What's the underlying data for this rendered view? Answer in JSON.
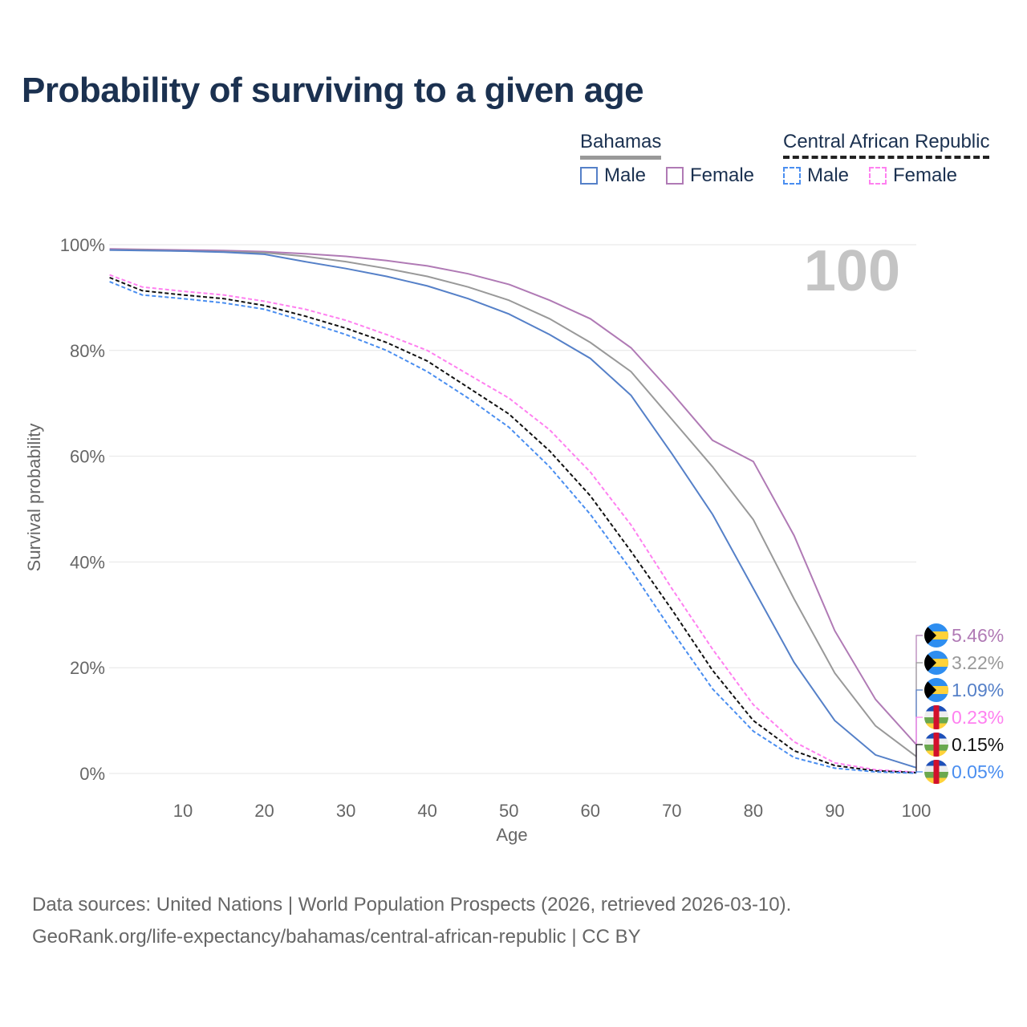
{
  "title": "Probability of surviving to a given age",
  "legend": {
    "groups": [
      {
        "name": "Bahamas",
        "male": "Male",
        "female": "Female"
      },
      {
        "name": "Central African Republic",
        "male": "Male",
        "female": "Female"
      }
    ]
  },
  "age_badge": "100",
  "source": {
    "line1": "Data sources: United Nations | World Population Prospects (2026, retrieved 2026-03-10).",
    "line2": "GeoRank.org/life-expectancy/bahamas/central-african-republic | CC BY"
  },
  "chart_data": {
    "type": "line",
    "xlabel": "Age",
    "ylabel": "Survival probability",
    "xlim": [
      1,
      100
    ],
    "ylim": [
      0,
      100
    ],
    "xticks": [
      10,
      20,
      30,
      40,
      50,
      60,
      70,
      80,
      90,
      100
    ],
    "yticks": [
      0,
      20,
      40,
      60,
      80,
      100
    ],
    "ytick_labels": [
      "0%",
      "20%",
      "40%",
      "60%",
      "80%",
      "100%"
    ],
    "x": [
      1,
      5,
      10,
      15,
      20,
      25,
      30,
      35,
      40,
      45,
      50,
      55,
      60,
      65,
      70,
      75,
      80,
      85,
      90,
      95,
      100
    ],
    "series": [
      {
        "name": "Bahamas Female",
        "color": "#b07ab5",
        "dash": false,
        "end_label": "5.46%",
        "flag": "bahamas",
        "values": [
          99.2,
          99.1,
          99,
          98.9,
          98.7,
          98.3,
          97.8,
          97,
          96,
          94.5,
          92.5,
          89.5,
          86,
          80.5,
          72,
          63,
          59,
          45,
          27,
          14,
          5.46
        ]
      },
      {
        "name": "Bahamas",
        "color": "#999999",
        "dash": false,
        "end_label": "3.22%",
        "flag": "bahamas",
        "values": [
          99,
          99,
          98.8,
          98.7,
          98.5,
          97.8,
          96.8,
          95.5,
          94,
          92,
          89.5,
          86,
          81.5,
          76,
          67,
          58,
          48,
          33,
          19,
          9,
          3.22
        ]
      },
      {
        "name": "Bahamas Male",
        "color": "#5580c8",
        "dash": false,
        "end_label": "1.09%",
        "flag": "bahamas",
        "values": [
          99,
          98.9,
          98.8,
          98.6,
          98.2,
          96.8,
          95.5,
          94,
          92.2,
          89.8,
          86.9,
          83,
          78.5,
          71.5,
          60.5,
          49,
          35,
          21,
          10,
          3.5,
          1.09
        ]
      },
      {
        "name": "Central African Republic Female",
        "color": "#ff80f0",
        "dash": true,
        "end_label": "0.23%",
        "flag": "car",
        "values": [
          94.3,
          92,
          91.2,
          90.5,
          89.3,
          87.8,
          85.7,
          83,
          80,
          75.5,
          71,
          65,
          57,
          47,
          35,
          23.5,
          13,
          6,
          2,
          0.7,
          0.23
        ]
      },
      {
        "name": "Central African Republic",
        "color": "#111111",
        "dash": true,
        "end_label": "0.15%",
        "flag": "car",
        "values": [
          93.8,
          91.3,
          90.5,
          89.8,
          88.5,
          86.5,
          84.2,
          81.5,
          78,
          73,
          68,
          61,
          52.5,
          42,
          31,
          19.5,
          10,
          4.3,
          1.5,
          0.5,
          0.15
        ]
      },
      {
        "name": "Central African Republic Male",
        "color": "#4a8ef0",
        "dash": true,
        "end_label": "0.05%",
        "flag": "car",
        "values": [
          93,
          90.5,
          89.8,
          89,
          87.8,
          85.5,
          83,
          80,
          76,
          71,
          65.5,
          58,
          49,
          38.5,
          27,
          16,
          8,
          3,
          1,
          0.3,
          0.05
        ]
      }
    ]
  }
}
